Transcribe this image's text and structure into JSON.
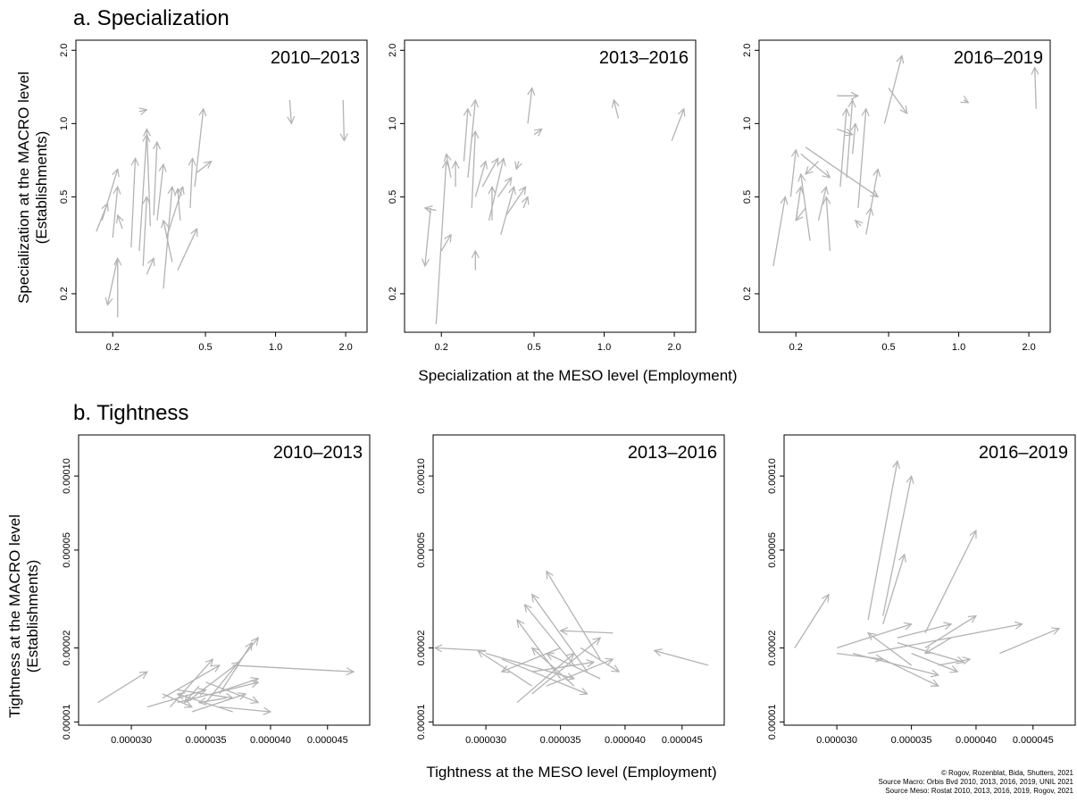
{
  "sections": [
    {
      "title": "a. Specialization",
      "x_label": "Specialization at the MESO level (Employment)",
      "y_label": [
        "Specialization at the MACRO level",
        "(Establishments)"
      ]
    },
    {
      "title": "b. Tightness",
      "x_label": "Tightness at the MESO level (Employment)",
      "y_label": [
        "Tightness at the MACRO level",
        "(Establishments)"
      ]
    }
  ],
  "credits": [
    "© Rogov, Rozenblat, Bida, Shutters, 2021",
    "Source Macro: Orbis Bvd 2010, 2013, 2016, 2019, UNIL 2021",
    "Source Meso: Rostat 2010, 2013, 2016, 2019, Rogov, 2021"
  ],
  "chart_data": [
    {
      "type": "arrows",
      "title": "2010–2013",
      "log_x": true,
      "log_y": true,
      "color": "#b3b3b3",
      "xlim": [
        0.139,
        2.47
      ],
      "ylim": [
        0.139,
        2.2
      ],
      "xticks": [
        0.2,
        0.5,
        {
          "value": 1,
          "label": "1.0"
        },
        {
          "value": 2,
          "label": "2.0"
        }
      ],
      "yticks": [
        0.2,
        0.5,
        {
          "value": 1,
          "label": "1.0"
        },
        {
          "value": 2,
          "label": "2.0"
        }
      ],
      "arrows": {
        "x_start": [
          0.17,
          0.18,
          0.21,
          0.21,
          0.2,
          0.22,
          0.24,
          0.26,
          0.27,
          0.29,
          0.3,
          0.31,
          0.33,
          0.36,
          0.34,
          0.38,
          0.43,
          0.45,
          0.46,
          0.26,
          1.15,
          1.95,
          0.28,
          0.39
        ],
        "y_start": [
          0.36,
          0.4,
          0.28,
          0.16,
          0.34,
          0.37,
          0.31,
          0.3,
          0.26,
          0.38,
          0.42,
          0.4,
          0.21,
          0.27,
          0.34,
          0.25,
          0.45,
          0.55,
          0.63,
          1.12,
          1.25,
          1.25,
          0.24,
          0.4
        ],
        "x_end": [
          0.19,
          0.21,
          0.19,
          0.21,
          0.21,
          0.21,
          0.25,
          0.28,
          0.28,
          0.28,
          0.31,
          0.33,
          0.36,
          0.33,
          0.4,
          0.46,
          0.44,
          0.49,
          0.53,
          0.28,
          1.17,
          1.97,
          0.3,
          0.38
        ],
        "y_end": [
          0.47,
          0.65,
          0.18,
          0.28,
          0.55,
          0.42,
          0.72,
          0.9,
          0.5,
          0.95,
          0.84,
          0.68,
          0.55,
          0.4,
          0.55,
          0.37,
          0.72,
          1.15,
          0.7,
          1.14,
          1.0,
          0.85,
          0.28,
          0.54
        ]
      }
    },
    {
      "type": "arrows",
      "title": "2013–2016",
      "log_x": true,
      "log_y": true,
      "color": "#b3b3b3",
      "xlim": [
        0.139,
        2.47
      ],
      "ylim": [
        0.139,
        2.2
      ],
      "xticks": [
        0.2,
        0.5,
        {
          "value": 1,
          "label": "1.0"
        },
        {
          "value": 2,
          "label": "2.0"
        }
      ],
      "yticks": [
        0.2,
        0.5,
        {
          "value": 1,
          "label": "1.0"
        },
        {
          "value": 2,
          "label": "2.0"
        }
      ],
      "arrows": {
        "x_start": [
          0.18,
          0.19,
          0.19,
          0.2,
          0.22,
          0.23,
          0.25,
          0.26,
          0.27,
          0.28,
          0.3,
          0.32,
          0.35,
          0.36,
          0.38,
          0.47,
          0.5,
          1.15,
          1.95,
          0.28,
          0.33,
          0.43,
          0.45
        ],
        "y_start": [
          0.45,
          0.15,
          0.44,
          0.3,
          0.6,
          0.55,
          0.7,
          0.6,
          0.45,
          0.5,
          0.55,
          0.4,
          0.5,
          0.35,
          0.42,
          1.0,
          0.9,
          1.05,
          0.85,
          0.25,
          0.4,
          0.7,
          0.45
        ],
        "x_end": [
          0.17,
          0.21,
          0.17,
          0.22,
          0.21,
          0.23,
          0.26,
          0.28,
          0.28,
          0.31,
          0.35,
          0.37,
          0.4,
          0.41,
          0.46,
          0.49,
          0.54,
          1.1,
          2.2,
          0.28,
          0.33,
          0.42,
          0.47
        ],
        "y_end": [
          0.26,
          0.7,
          0.45,
          0.35,
          0.75,
          0.7,
          1.15,
          1.25,
          0.93,
          0.7,
          0.72,
          0.72,
          0.6,
          0.55,
          0.55,
          1.4,
          0.95,
          1.25,
          1.15,
          0.3,
          0.55,
          0.65,
          0.5
        ]
      }
    },
    {
      "type": "arrows",
      "title": "2016–2019",
      "log_x": true,
      "log_y": true,
      "color": "#b3b3b3",
      "xlim": [
        0.139,
        2.47
      ],
      "ylim": [
        0.139,
        2.2
      ],
      "xticks": [
        0.2,
        0.5,
        {
          "value": 1,
          "label": "1.0"
        },
        {
          "value": 2,
          "label": "2.0"
        }
      ],
      "yticks": [
        0.2,
        0.5,
        {
          "value": 1,
          "label": "1.0"
        },
        {
          "value": 2,
          "label": "2.0"
        }
      ],
      "arrows": {
        "x_start": [
          0.16,
          0.19,
          0.2,
          0.22,
          0.21,
          0.23,
          0.25,
          0.28,
          0.3,
          0.31,
          0.33,
          0.3,
          0.35,
          0.37,
          0.4,
          0.42,
          0.48,
          0.5,
          0.22,
          1.05,
          2.15,
          0.38,
          0.25
        ],
        "y_start": [
          0.26,
          0.5,
          0.4,
          0.45,
          0.75,
          0.33,
          0.4,
          0.3,
          0.95,
          0.55,
          0.6,
          1.3,
          0.75,
          0.45,
          0.35,
          0.45,
          1.0,
          1.4,
          0.8,
          1.25,
          1.15,
          0.38,
          0.7
        ],
        "x_end": [
          0.18,
          0.2,
          0.21,
          0.2,
          0.28,
          0.21,
          0.27,
          0.27,
          0.35,
          0.33,
          0.35,
          0.37,
          0.36,
          0.4,
          0.42,
          0.45,
          0.57,
          0.6,
          0.45,
          1.1,
          2.12,
          0.36,
          0.22
        ],
        "y_end": [
          0.5,
          0.78,
          0.55,
          0.4,
          0.6,
          0.62,
          0.55,
          0.5,
          0.9,
          1.15,
          1.25,
          1.3,
          1.0,
          1.15,
          0.45,
          0.65,
          1.9,
          1.1,
          0.5,
          1.22,
          1.7,
          0.4,
          0.62
        ]
      }
    },
    {
      "type": "arrows",
      "title": "2010–2013",
      "log_x": true,
      "log_y": true,
      "color": "#b3b3b3",
      "xlim": [
        2.69e-05,
        4.91e-05
      ],
      "ylim": [
        9.7e-06,
        0.000147
      ],
      "xticks": [
        {
          "value": 3e-05,
          "label": "0.000030"
        },
        {
          "value": 3.5e-05,
          "label": "0.000035"
        },
        {
          "value": 4e-05,
          "label": "0.000040"
        },
        {
          "value": 4.5e-05,
          "label": "0.000045"
        }
      ],
      "yticks": [
        1e-05,
        2e-05,
        5e-05,
        {
          "value": 0.0001,
          "label": "0.00010"
        }
      ],
      "arrows": {
        "x_start": [
          2.8e-05,
          3.1e-05,
          3.2e-05,
          3.3e-05,
          3.4e-05,
          3.3e-05,
          3.5e-05,
          3.6e-05,
          3.45e-05,
          3.6e-05,
          3.7e-05,
          3.25e-05,
          3.4e-05,
          3.5e-05,
          3.2e-05,
          3.7e-05,
          3.55e-05,
          3.65e-05
        ],
        "y_start": [
          1.2e-05,
          1.15e-05,
          1.25e-05,
          1.2e-05,
          1.1e-05,
          1.35e-05,
          1.2e-05,
          1.3e-05,
          1.4e-05,
          1.15e-05,
          1.7e-05,
          1.15e-05,
          1.25e-05,
          1.45e-05,
          1.3e-05,
          1.1e-05,
          1.3e-05,
          1.25e-05
        ],
        "x_end": [
          3.1e-05,
          3.5e-05,
          3.6e-05,
          3.9e-05,
          3.8e-05,
          3.7e-05,
          3.9e-05,
          3.85e-05,
          3.35e-05,
          4e-05,
          4.75e-05,
          3.55e-05,
          3.75e-05,
          3.9e-05,
          3.4e-05,
          3.3e-05,
          3.9e-05,
          3.45e-05
        ],
        "y_end": [
          1.6e-05,
          1.35e-05,
          1.7e-05,
          1.45e-05,
          1.3e-05,
          1.25e-05,
          2.2e-05,
          2.1e-05,
          1.2e-05,
          1.1e-05,
          1.6e-05,
          1.8e-05,
          1.75e-05,
          1.2e-05,
          1.15e-05,
          1.3e-05,
          1.5e-05,
          1.2e-05
        ]
      }
    },
    {
      "type": "arrows",
      "title": "2013–2016",
      "log_x": true,
      "log_y": true,
      "color": "#b3b3b3",
      "xlim": [
        2.69e-05,
        4.91e-05
      ],
      "ylim": [
        9.7e-06,
        0.000147
      ],
      "xticks": [
        {
          "value": 3e-05,
          "label": "0.000030"
        },
        {
          "value": 3.5e-05,
          "label": "0.000035"
        },
        {
          "value": 4e-05,
          "label": "0.000040"
        },
        {
          "value": 4.5e-05,
          "label": "0.000045"
        }
      ],
      "yticks": [
        1e-05,
        2e-05,
        5e-05,
        {
          "value": 0.0001,
          "label": "0.00010"
        }
      ],
      "arrows": {
        "x_start": [
          3e-05,
          3.3e-05,
          3.5e-05,
          3.6e-05,
          3.8e-05,
          3.7e-05,
          3.9e-05,
          4.75e-05,
          3.2e-05,
          3.3e-05,
          3e-05,
          3.1e-05,
          3.4e-05,
          3.6e-05,
          3.5e-05,
          3.8e-05,
          3.3e-05,
          3.65e-05
        ],
        "y_start": [
          1.95e-05,
          1.4e-05,
          1.5e-05,
          1.7e-05,
          1.8e-05,
          1.6e-05,
          2.3e-05,
          1.7e-05,
          1.2e-05,
          1.3e-05,
          1.9e-05,
          1.8e-05,
          1.4e-05,
          1.4e-05,
          2e-05,
          1.5e-05,
          1.6e-05,
          2e-05
        ],
        "x_end": [
          2.7e-05,
          2.95e-05,
          3.2e-05,
          3.25e-05,
          3.4e-05,
          3.3e-05,
          3.5e-05,
          4.25e-05,
          3.6e-05,
          3.8e-05,
          3.6e-05,
          3.7e-05,
          3.9e-05,
          3.3e-05,
          3.1e-05,
          3.4e-05,
          3.75e-05,
          3.95e-05
        ],
        "y_end": [
          2e-05,
          1.95e-05,
          2.6e-05,
          3e-05,
          4.1e-05,
          3.3e-05,
          2.35e-05,
          1.95e-05,
          1.9e-05,
          2.2e-05,
          1.5e-05,
          1.3e-05,
          1.8e-05,
          2e-05,
          1.6e-05,
          1.9e-05,
          1.75e-05,
          1.6e-05
        ]
      }
    },
    {
      "type": "arrows",
      "title": "2016–2019",
      "log_x": true,
      "log_y": true,
      "color": "#b3b3b3",
      "xlim": [
        2.69e-05,
        4.91e-05
      ],
      "ylim": [
        9.7e-06,
        0.000147
      ],
      "xticks": [
        {
          "value": 3e-05,
          "label": "0.000030"
        },
        {
          "value": 3.5e-05,
          "label": "0.000035"
        },
        {
          "value": 4e-05,
          "label": "0.000040"
        },
        {
          "value": 4.5e-05,
          "label": "0.000045"
        }
      ],
      "yticks": [
        1e-05,
        2e-05,
        5e-05,
        {
          "value": 0.0001,
          "label": "0.00010"
        }
      ],
      "arrows": {
        "x_start": [
          2.75e-05,
          3.2e-05,
          3.3e-05,
          3.3e-05,
          3.6e-05,
          3e-05,
          3.2e-05,
          4.2e-05,
          3.4e-05,
          3.5e-05,
          3.1e-05,
          3.3e-05,
          3.6e-05,
          3.7e-05,
          3e-05,
          3.4e-05,
          3.5e-05,
          3.8e-05
        ],
        "y_start": [
          2e-05,
          2.6e-05,
          2.7e-05,
          2.5e-05,
          2.3e-05,
          2e-05,
          1.9e-05,
          1.9e-05,
          2.1e-05,
          1.7e-05,
          1.9e-05,
          1.8e-05,
          2e-05,
          1.7e-05,
          1.9e-05,
          2.2e-05,
          1.9e-05,
          2.2e-05
        ],
        "x_end": [
          2.95e-05,
          3.4e-05,
          3.5e-05,
          3.45e-05,
          4e-05,
          3.5e-05,
          4.4e-05,
          4.75e-05,
          3.9e-05,
          3.2e-05,
          3.7e-05,
          3.7e-05,
          4e-05,
          3.95e-05,
          3.3e-05,
          3.8e-05,
          3.85e-05,
          3.6e-05
        ],
        "y_end": [
          3.3e-05,
          0.000115,
          0.0001,
          4.8e-05,
          6e-05,
          2.5e-05,
          2.5e-05,
          2.4e-05,
          1.75e-05,
          2.3e-05,
          1.55e-05,
          1.4e-05,
          2.7e-05,
          1.8e-05,
          1.8e-05,
          2.5e-05,
          1.6e-05,
          1.9e-05
        ]
      }
    }
  ]
}
